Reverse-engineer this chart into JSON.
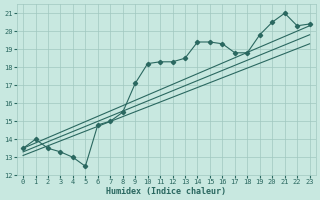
{
  "xlabel": "Humidex (Indice chaleur)",
  "xlim": [
    -0.5,
    23.5
  ],
  "ylim": [
    12,
    21.5
  ],
  "yticks": [
    12,
    13,
    14,
    15,
    16,
    17,
    18,
    19,
    20,
    21
  ],
  "xticks": [
    0,
    1,
    2,
    3,
    4,
    5,
    6,
    7,
    8,
    9,
    10,
    11,
    12,
    13,
    14,
    15,
    16,
    17,
    18,
    19,
    20,
    21,
    22,
    23
  ],
  "bg_color": "#c8e8e0",
  "grid_color": "#a0c8c0",
  "line_color": "#2a6860",
  "series_marked": {
    "x": [
      0,
      1,
      2,
      3,
      4,
      5,
      6,
      7,
      8,
      9,
      10,
      11,
      12,
      13,
      14,
      15,
      16,
      17,
      18,
      19,
      20,
      21,
      22,
      23
    ],
    "y": [
      13.5,
      14.0,
      13.5,
      13.3,
      13.0,
      12.5,
      14.8,
      15.0,
      15.5,
      17.1,
      18.2,
      18.3,
      18.3,
      18.5,
      19.4,
      19.4,
      19.3,
      18.8,
      18.8,
      19.8,
      20.5,
      21.0,
      20.3,
      20.4
    ]
  },
  "series_lines": [
    {
      "x": [
        0,
        23
      ],
      "y": [
        13.5,
        20.3
      ]
    },
    {
      "x": [
        0,
        23
      ],
      "y": [
        13.3,
        19.8
      ]
    },
    {
      "x": [
        0,
        23
      ],
      "y": [
        13.1,
        19.3
      ]
    }
  ]
}
